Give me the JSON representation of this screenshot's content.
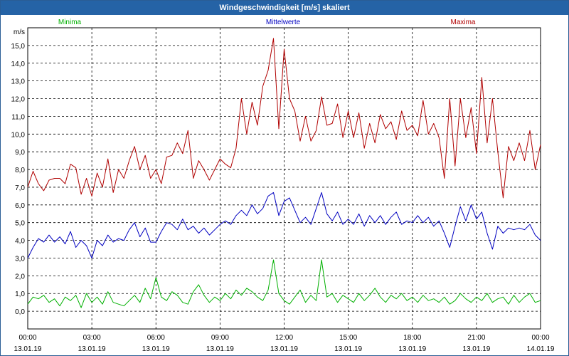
{
  "window": {
    "title": "Windgeschwindigkeit [m/s] skaliert"
  },
  "legend": [
    {
      "name": "Minima",
      "color": "#00b000"
    },
    {
      "name": "Mittelwerte",
      "color": "#0000c0"
    },
    {
      "name": "Maxima",
      "color": "#b00000"
    }
  ],
  "chart_data": {
    "type": "line",
    "title": "Windgeschwindigkeit [m/s] skaliert",
    "ylabel": "m/s",
    "xlabel": "",
    "ylim": [
      -1,
      16
    ],
    "xlim_hours": [
      0,
      24
    ],
    "y_ticks": [
      {
        "value": 0,
        "label": "0,0"
      },
      {
        "value": 1,
        "label": "1,0"
      },
      {
        "value": 2,
        "label": "2,0"
      },
      {
        "value": 3,
        "label": "3,0"
      },
      {
        "value": 4,
        "label": "4,0"
      },
      {
        "value": 5,
        "label": "5,0"
      },
      {
        "value": 6,
        "label": "6,0"
      },
      {
        "value": 7,
        "label": "7,0"
      },
      {
        "value": 8,
        "label": "8,0"
      },
      {
        "value": 9,
        "label": "9,0"
      },
      {
        "value": 10,
        "label": "10,0"
      },
      {
        "value": 11,
        "label": "11,0"
      },
      {
        "value": 12,
        "label": "12,0"
      },
      {
        "value": 13,
        "label": "13,0"
      },
      {
        "value": 14,
        "label": "14,0"
      },
      {
        "value": 15,
        "label": "15,0"
      }
    ],
    "x_ticks": [
      {
        "hour": 0,
        "time": "00:00",
        "date": "13.01.19"
      },
      {
        "hour": 3,
        "time": "03:00",
        "date": "13.01.19"
      },
      {
        "hour": 6,
        "time": "06:00",
        "date": "13.01.19"
      },
      {
        "hour": 9,
        "time": "09:00",
        "date": "13.01.19"
      },
      {
        "hour": 12,
        "time": "12:00",
        "date": "13.01.19"
      },
      {
        "hour": 15,
        "time": "15:00",
        "date": "13.01.19"
      },
      {
        "hour": 18,
        "time": "18:00",
        "date": "13.01.19"
      },
      {
        "hour": 21,
        "time": "21:00",
        "date": "13.01.19"
      },
      {
        "hour": 24,
        "time": "00:00",
        "date": "14.01.19"
      }
    ],
    "series": [
      {
        "name": "Minima",
        "color": "#00b000",
        "points": [
          [
            0,
            0.4
          ],
          [
            0.25,
            0.8
          ],
          [
            0.5,
            0.7
          ],
          [
            0.75,
            0.9
          ],
          [
            1,
            0.5
          ],
          [
            1.25,
            0.7
          ],
          [
            1.5,
            0.3
          ],
          [
            1.75,
            0.8
          ],
          [
            2,
            0.6
          ],
          [
            2.25,
            0.9
          ],
          [
            2.5,
            0.2
          ],
          [
            2.75,
            1.0
          ],
          [
            3,
            0.5
          ],
          [
            3.25,
            0.8
          ],
          [
            3.5,
            0.4
          ],
          [
            3.75,
            1.1
          ],
          [
            4,
            0.5
          ],
          [
            4.25,
            0.4
          ],
          [
            4.5,
            0.3
          ],
          [
            4.75,
            0.6
          ],
          [
            5,
            0.9
          ],
          [
            5.25,
            0.5
          ],
          [
            5.5,
            1.3
          ],
          [
            5.75,
            0.7
          ],
          [
            6,
            1.9
          ],
          [
            6.25,
            0.8
          ],
          [
            6.5,
            0.6
          ],
          [
            6.75,
            1.1
          ],
          [
            7,
            0.9
          ],
          [
            7.25,
            0.5
          ],
          [
            7.5,
            0.4
          ],
          [
            7.75,
            1.1
          ],
          [
            8,
            1.5
          ],
          [
            8.25,
            0.9
          ],
          [
            8.5,
            0.5
          ],
          [
            8.75,
            0.8
          ],
          [
            9,
            0.6
          ],
          [
            9.25,
            1.0
          ],
          [
            9.5,
            0.7
          ],
          [
            9.75,
            1.2
          ],
          [
            10,
            0.9
          ],
          [
            10.25,
            1.3
          ],
          [
            10.5,
            1.1
          ],
          [
            10.75,
            0.8
          ],
          [
            11,
            0.6
          ],
          [
            11.25,
            1.2
          ],
          [
            11.5,
            2.9
          ],
          [
            11.75,
            1.0
          ],
          [
            12,
            0.6
          ],
          [
            12.25,
            0.4
          ],
          [
            12.5,
            0.8
          ],
          [
            12.75,
            1.2
          ],
          [
            13,
            0.5
          ],
          [
            13.25,
            0.9
          ],
          [
            13.5,
            0.6
          ],
          [
            13.75,
            2.9
          ],
          [
            14,
            0.8
          ],
          [
            14.25,
            1.0
          ],
          [
            14.5,
            0.5
          ],
          [
            14.75,
            0.9
          ],
          [
            15,
            0.7
          ],
          [
            15.25,
            0.5
          ],
          [
            15.5,
            1.0
          ],
          [
            15.75,
            0.6
          ],
          [
            16,
            0.9
          ],
          [
            16.25,
            1.3
          ],
          [
            16.5,
            0.8
          ],
          [
            16.75,
            0.5
          ],
          [
            17,
            0.9
          ],
          [
            17.25,
            0.7
          ],
          [
            17.5,
            1.0
          ],
          [
            17.75,
            0.6
          ],
          [
            18,
            0.8
          ],
          [
            18.25,
            0.5
          ],
          [
            18.5,
            0.9
          ],
          [
            18.75,
            0.6
          ],
          [
            19,
            0.7
          ],
          [
            19.25,
            0.5
          ],
          [
            19.5,
            0.8
          ],
          [
            19.75,
            0.4
          ],
          [
            20,
            0.6
          ],
          [
            20.25,
            1.0
          ],
          [
            20.5,
            0.7
          ],
          [
            20.75,
            0.5
          ],
          [
            21,
            0.8
          ],
          [
            21.25,
            0.6
          ],
          [
            21.5,
            1.0
          ],
          [
            21.75,
            0.5
          ],
          [
            22,
            0.7
          ],
          [
            22.25,
            0.8
          ],
          [
            22.5,
            0.4
          ],
          [
            22.75,
            0.9
          ],
          [
            23,
            0.5
          ],
          [
            23.25,
            0.8
          ],
          [
            23.5,
            1.0
          ],
          [
            23.75,
            0.5
          ],
          [
            24,
            0.6
          ]
        ]
      },
      {
        "name": "Mittelwerte",
        "color": "#0000c0",
        "points": [
          [
            0,
            3.0
          ],
          [
            0.25,
            3.6
          ],
          [
            0.5,
            4.1
          ],
          [
            0.75,
            3.9
          ],
          [
            1,
            4.3
          ],
          [
            1.25,
            3.9
          ],
          [
            1.5,
            4.2
          ],
          [
            1.75,
            3.8
          ],
          [
            2,
            4.5
          ],
          [
            2.25,
            3.6
          ],
          [
            2.5,
            4.0
          ],
          [
            2.75,
            3.7
          ],
          [
            3,
            3.0
          ],
          [
            3.25,
            4.0
          ],
          [
            3.5,
            3.7
          ],
          [
            3.75,
            4.3
          ],
          [
            4,
            3.9
          ],
          [
            4.25,
            4.1
          ],
          [
            4.5,
            4.0
          ],
          [
            4.75,
            4.6
          ],
          [
            5,
            5.0
          ],
          [
            5.25,
            4.2
          ],
          [
            5.5,
            4.7
          ],
          [
            5.75,
            3.9
          ],
          [
            6,
            3.9
          ],
          [
            6.25,
            4.5
          ],
          [
            6.5,
            5.0
          ],
          [
            6.75,
            4.9
          ],
          [
            7,
            4.6
          ],
          [
            7.25,
            5.2
          ],
          [
            7.5,
            4.6
          ],
          [
            7.75,
            4.8
          ],
          [
            8,
            4.4
          ],
          [
            8.25,
            4.7
          ],
          [
            8.5,
            4.3
          ],
          [
            8.75,
            4.6
          ],
          [
            9,
            4.9
          ],
          [
            9.25,
            5.1
          ],
          [
            9.5,
            4.9
          ],
          [
            9.75,
            5.4
          ],
          [
            10,
            5.7
          ],
          [
            10.25,
            5.4
          ],
          [
            10.5,
            6.0
          ],
          [
            10.75,
            5.5
          ],
          [
            11,
            5.8
          ],
          [
            11.25,
            6.5
          ],
          [
            11.5,
            6.7
          ],
          [
            11.75,
            5.4
          ],
          [
            12,
            6.2
          ],
          [
            12.25,
            6.4
          ],
          [
            12.5,
            5.7
          ],
          [
            12.75,
            5.0
          ],
          [
            13,
            5.3
          ],
          [
            13.25,
            4.9
          ],
          [
            13.5,
            5.8
          ],
          [
            13.75,
            6.7
          ],
          [
            14,
            5.5
          ],
          [
            14.25,
            5.1
          ],
          [
            14.5,
            5.6
          ],
          [
            14.75,
            4.9
          ],
          [
            15,
            5.2
          ],
          [
            15.25,
            4.9
          ],
          [
            15.5,
            5.5
          ],
          [
            15.75,
            4.8
          ],
          [
            16,
            5.4
          ],
          [
            16.25,
            5.0
          ],
          [
            16.5,
            5.4
          ],
          [
            16.75,
            4.9
          ],
          [
            17,
            5.3
          ],
          [
            17.25,
            5.6
          ],
          [
            17.5,
            4.9
          ],
          [
            17.75,
            5.1
          ],
          [
            18,
            5.0
          ],
          [
            18.25,
            5.4
          ],
          [
            18.5,
            5.0
          ],
          [
            18.75,
            5.3
          ],
          [
            19,
            4.8
          ],
          [
            19.25,
            5.1
          ],
          [
            19.5,
            4.4
          ],
          [
            19.75,
            3.6
          ],
          [
            20,
            4.8
          ],
          [
            20.25,
            5.9
          ],
          [
            20.5,
            5.1
          ],
          [
            20.75,
            6.0
          ],
          [
            21,
            5.2
          ],
          [
            21.25,
            5.6
          ],
          [
            21.5,
            4.4
          ],
          [
            21.75,
            3.5
          ],
          [
            22,
            4.8
          ],
          [
            22.25,
            4.4
          ],
          [
            22.5,
            4.7
          ],
          [
            22.75,
            4.6
          ],
          [
            23,
            4.7
          ],
          [
            23.25,
            4.6
          ],
          [
            23.5,
            4.9
          ],
          [
            23.75,
            4.3
          ],
          [
            24,
            4.0
          ]
        ]
      },
      {
        "name": "Maxima",
        "color": "#b00000",
        "points": [
          [
            0,
            7.0
          ],
          [
            0.25,
            7.9
          ],
          [
            0.5,
            7.2
          ],
          [
            0.75,
            6.8
          ],
          [
            1,
            7.4
          ],
          [
            1.25,
            7.5
          ],
          [
            1.5,
            7.5
          ],
          [
            1.75,
            7.2
          ],
          [
            2,
            8.3
          ],
          [
            2.25,
            8.1
          ],
          [
            2.5,
            6.6
          ],
          [
            2.75,
            7.5
          ],
          [
            3,
            6.5
          ],
          [
            3.25,
            7.8
          ],
          [
            3.5,
            7.0
          ],
          [
            3.75,
            8.6
          ],
          [
            4,
            6.7
          ],
          [
            4.25,
            8.0
          ],
          [
            4.5,
            7.5
          ],
          [
            4.75,
            8.5
          ],
          [
            5,
            9.3
          ],
          [
            5.25,
            8.0
          ],
          [
            5.5,
            8.8
          ],
          [
            5.75,
            7.5
          ],
          [
            6,
            8.0
          ],
          [
            6.25,
            7.2
          ],
          [
            6.5,
            8.7
          ],
          [
            6.75,
            8.8
          ],
          [
            7,
            9.5
          ],
          [
            7.25,
            8.9
          ],
          [
            7.5,
            10.2
          ],
          [
            7.75,
            7.5
          ],
          [
            8,
            8.5
          ],
          [
            8.25,
            8.0
          ],
          [
            8.5,
            7.4
          ],
          [
            8.75,
            8.0
          ],
          [
            9,
            8.6
          ],
          [
            9.25,
            8.3
          ],
          [
            9.5,
            8.1
          ],
          [
            9.75,
            9.2
          ],
          [
            10,
            12.0
          ],
          [
            10.25,
            10.0
          ],
          [
            10.5,
            11.8
          ],
          [
            10.75,
            10.5
          ],
          [
            11,
            12.7
          ],
          [
            11.25,
            13.6
          ],
          [
            11.5,
            15.4
          ],
          [
            11.75,
            10.3
          ],
          [
            12,
            14.8
          ],
          [
            12.25,
            12.0
          ],
          [
            12.5,
            11.3
          ],
          [
            12.75,
            9.6
          ],
          [
            13,
            11.0
          ],
          [
            13.25,
            9.6
          ],
          [
            13.5,
            10.2
          ],
          [
            13.75,
            12.1
          ],
          [
            14,
            10.5
          ],
          [
            14.25,
            10.6
          ],
          [
            14.5,
            11.7
          ],
          [
            14.75,
            9.8
          ],
          [
            15,
            11.3
          ],
          [
            15.25,
            9.8
          ],
          [
            15.5,
            11.2
          ],
          [
            15.75,
            9.2
          ],
          [
            16,
            10.6
          ],
          [
            16.25,
            9.5
          ],
          [
            16.5,
            11.1
          ],
          [
            16.75,
            10.3
          ],
          [
            17,
            10.7
          ],
          [
            17.25,
            9.7
          ],
          [
            17.5,
            11.3
          ],
          [
            17.75,
            10.2
          ],
          [
            18,
            10.5
          ],
          [
            18.25,
            9.9
          ],
          [
            18.5,
            11.9
          ],
          [
            18.75,
            10.0
          ],
          [
            19,
            10.6
          ],
          [
            19.25,
            9.8
          ],
          [
            19.5,
            7.5
          ],
          [
            19.75,
            12.0
          ],
          [
            20,
            8.2
          ],
          [
            20.25,
            12.0
          ],
          [
            20.5,
            9.8
          ],
          [
            20.75,
            11.5
          ],
          [
            21,
            8.9
          ],
          [
            21.25,
            13.2
          ],
          [
            21.5,
            9.5
          ],
          [
            21.75,
            12.0
          ],
          [
            22,
            9.0
          ],
          [
            22.25,
            6.4
          ],
          [
            22.5,
            9.3
          ],
          [
            22.75,
            8.5
          ],
          [
            23,
            9.5
          ],
          [
            23.25,
            8.5
          ],
          [
            23.5,
            10.2
          ],
          [
            23.75,
            8.0
          ],
          [
            24,
            9.4
          ]
        ]
      }
    ]
  }
}
